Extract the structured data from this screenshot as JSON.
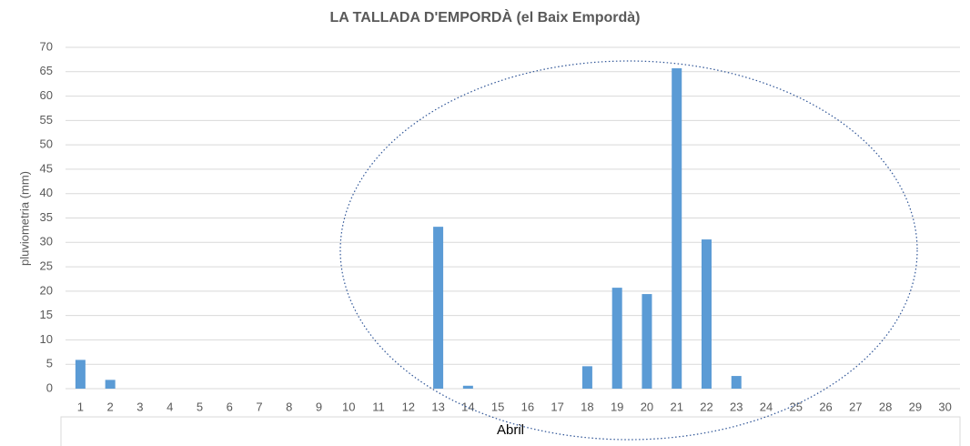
{
  "chart_data": {
    "type": "bar",
    "title": "LA TALLADA D'EMPORDÀ (el Baix Empordà)",
    "x_label": "Abril",
    "y_label": "pluviometria (mm)",
    "categories": [
      1,
      2,
      3,
      4,
      5,
      6,
      7,
      8,
      9,
      10,
      11,
      12,
      13,
      14,
      15,
      16,
      17,
      18,
      19,
      20,
      21,
      22,
      23,
      24,
      25,
      26,
      27,
      28,
      29,
      30
    ],
    "values": [
      5.9,
      1.8,
      0,
      0,
      0,
      0,
      0,
      0,
      0,
      0,
      0,
      0,
      33.2,
      0.6,
      0,
      0,
      0,
      4.6,
      20.7,
      19.4,
      65.7,
      30.6,
      2.6,
      0,
      0,
      0,
      0,
      0,
      0,
      0
    ],
    "color": "#5b9bd5",
    "ylim": [
      0,
      70
    ],
    "yticks": [
      0,
      5,
      10,
      15,
      20,
      25,
      30,
      35,
      40,
      45,
      50,
      55,
      60,
      65,
      70
    ],
    "grid": true
  }
}
